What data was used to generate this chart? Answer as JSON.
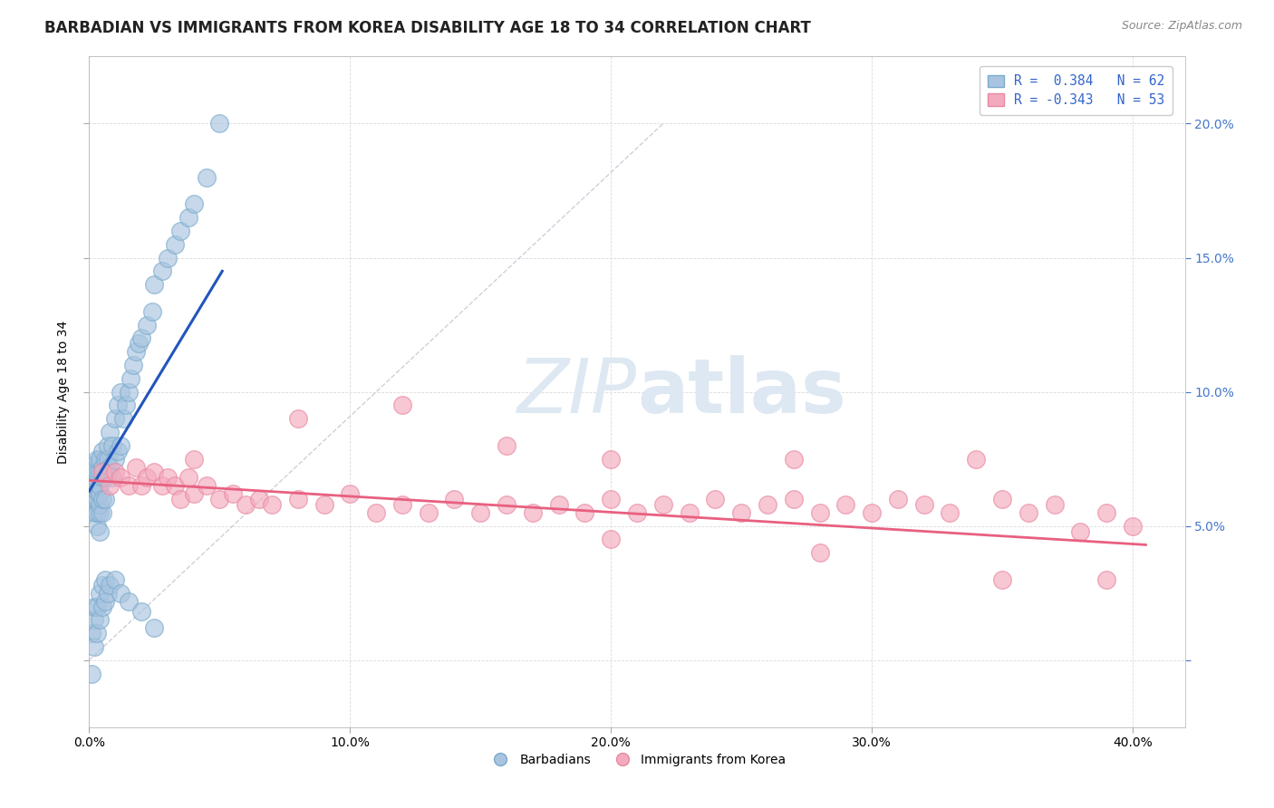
{
  "title": "BARBADIAN VS IMMIGRANTS FROM KOREA DISABILITY AGE 18 TO 34 CORRELATION CHART",
  "source": "Source: ZipAtlas.com",
  "ylabel": "Disability Age 18 to 34",
  "xlim": [
    0.0,
    0.42
  ],
  "ylim": [
    -0.025,
    0.225
  ],
  "xticks": [
    0.0,
    0.1,
    0.2,
    0.3,
    0.4
  ],
  "xtick_labels": [
    "0.0%",
    "10.0%",
    "20.0%",
    "30.0%",
    "40.0%"
  ],
  "yticks": [
    0.0,
    0.05,
    0.1,
    0.15,
    0.2
  ],
  "ytick_labels_right": [
    "",
    "5.0%",
    "10.0%",
    "15.0%",
    "20.0%"
  ],
  "legend_r1": "R =  0.384   N = 62",
  "legend_r2": "R = -0.343   N = 53",
  "blue_color": "#A8C4E0",
  "pink_color": "#F4AABE",
  "blue_edge_color": "#7AABCC",
  "pink_edge_color": "#E888A0",
  "blue_line_color": "#2255BB",
  "pink_line_color": "#E86080",
  "legend_text_color": "#3366CC",
  "right_tick_color": "#4477CC",
  "watermark_color": "#DDE8F2",
  "background_color": "#ffffff",
  "title_fontsize": 12,
  "axis_label_fontsize": 10,
  "tick_fontsize": 10,
  "blue_scatter_x": [
    0.001,
    0.001,
    0.001,
    0.002,
    0.002,
    0.002,
    0.002,
    0.002,
    0.003,
    0.003,
    0.003,
    0.003,
    0.003,
    0.003,
    0.003,
    0.004,
    0.004,
    0.004,
    0.004,
    0.004,
    0.004,
    0.004,
    0.005,
    0.005,
    0.005,
    0.005,
    0.005,
    0.006,
    0.006,
    0.006,
    0.007,
    0.007,
    0.007,
    0.008,
    0.008,
    0.009,
    0.009,
    0.01,
    0.01,
    0.011,
    0.011,
    0.012,
    0.012,
    0.013,
    0.014,
    0.015,
    0.016,
    0.017,
    0.018,
    0.019,
    0.02,
    0.022,
    0.024,
    0.025,
    0.028,
    0.03,
    0.033,
    0.035,
    0.038,
    0.04,
    0.045,
    0.05
  ],
  "blue_scatter_y": [
    0.06,
    0.068,
    0.072,
    0.055,
    0.06,
    0.065,
    0.07,
    0.073,
    0.05,
    0.055,
    0.06,
    0.063,
    0.067,
    0.07,
    0.075,
    0.048,
    0.055,
    0.058,
    0.062,
    0.065,
    0.07,
    0.075,
    0.055,
    0.06,
    0.068,
    0.072,
    0.078,
    0.06,
    0.068,
    0.075,
    0.07,
    0.075,
    0.08,
    0.072,
    0.085,
    0.068,
    0.08,
    0.075,
    0.09,
    0.078,
    0.095,
    0.08,
    0.1,
    0.09,
    0.095,
    0.1,
    0.105,
    0.11,
    0.115,
    0.118,
    0.12,
    0.125,
    0.13,
    0.14,
    0.145,
    0.15,
    0.155,
    0.16,
    0.165,
    0.17,
    0.18,
    0.2
  ],
  "blue_low_x": [
    0.001,
    0.001,
    0.002,
    0.002,
    0.002,
    0.003,
    0.003,
    0.004,
    0.004,
    0.005,
    0.005,
    0.006,
    0.006,
    0.007,
    0.008,
    0.01,
    0.012,
    0.015,
    0.02,
    0.025
  ],
  "blue_low_y": [
    -0.005,
    0.01,
    0.005,
    0.015,
    0.02,
    0.01,
    0.02,
    0.015,
    0.025,
    0.02,
    0.028,
    0.022,
    0.03,
    0.025,
    0.028,
    0.03,
    0.025,
    0.022,
    0.018,
    0.012
  ],
  "pink_scatter_x": [
    0.005,
    0.008,
    0.01,
    0.012,
    0.015,
    0.018,
    0.02,
    0.022,
    0.025,
    0.028,
    0.03,
    0.033,
    0.035,
    0.038,
    0.04,
    0.045,
    0.05,
    0.055,
    0.06,
    0.065,
    0.07,
    0.08,
    0.09,
    0.1,
    0.11,
    0.12,
    0.13,
    0.14,
    0.15,
    0.16,
    0.17,
    0.18,
    0.19,
    0.2,
    0.21,
    0.22,
    0.23,
    0.24,
    0.25,
    0.26,
    0.27,
    0.28,
    0.29,
    0.3,
    0.31,
    0.32,
    0.33,
    0.35,
    0.36,
    0.37,
    0.38,
    0.39,
    0.4
  ],
  "pink_scatter_y": [
    0.07,
    0.065,
    0.07,
    0.068,
    0.065,
    0.072,
    0.065,
    0.068,
    0.07,
    0.065,
    0.068,
    0.065,
    0.06,
    0.068,
    0.062,
    0.065,
    0.06,
    0.062,
    0.058,
    0.06,
    0.058,
    0.06,
    0.058,
    0.062,
    0.055,
    0.058,
    0.055,
    0.06,
    0.055,
    0.058,
    0.055,
    0.058,
    0.055,
    0.06,
    0.055,
    0.058,
    0.055,
    0.06,
    0.055,
    0.058,
    0.06,
    0.055,
    0.058,
    0.055,
    0.06,
    0.058,
    0.055,
    0.06,
    0.055,
    0.058,
    0.048,
    0.055,
    0.05
  ],
  "pink_extra_x": [
    0.04,
    0.08,
    0.12,
    0.16,
    0.2,
    0.27,
    0.34,
    0.39,
    0.2,
    0.28,
    0.35
  ],
  "pink_extra_y": [
    0.075,
    0.09,
    0.095,
    0.08,
    0.075,
    0.075,
    0.075,
    0.03,
    0.045,
    0.04,
    0.03
  ]
}
